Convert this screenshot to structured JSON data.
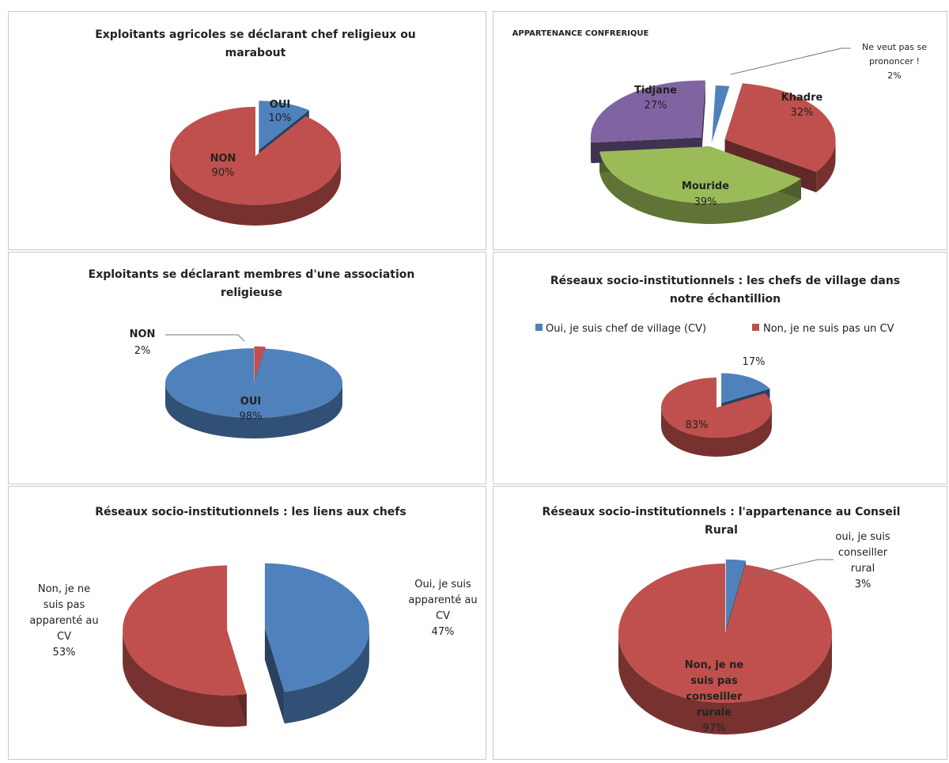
{
  "colors": {
    "blue": "#4f81bd",
    "red": "#c0504d",
    "green": "#9bbb59",
    "purple": "#8064a2"
  },
  "chart_data": [
    {
      "type": "pie",
      "title": "Exploitants agricoles se déclarant chef religieux ou marabout",
      "title_lines": [
        "Exploitants agricoles se déclarant chef religieux ou",
        "marabout"
      ],
      "categories": [
        "OUI",
        "NON"
      ],
      "values": [
        10,
        90
      ],
      "labels": [
        "10%",
        "90%"
      ],
      "colors": [
        "#4f81bd",
        "#c0504d"
      ]
    },
    {
      "type": "pie",
      "title": "APPARTENANCE CONFRERIQUE",
      "title_lines": [
        "APPARTENANCE CONFRERIQUE"
      ],
      "categories": [
        "Ne veut pas se prononcer !",
        "Khadre",
        "Mouride",
        "Tidjane"
      ],
      "values": [
        2,
        32,
        39,
        27
      ],
      "labels": [
        "2%",
        "32%",
        "39%",
        "27%"
      ],
      "colors": [
        "#4f81bd",
        "#c0504d",
        "#9bbb59",
        "#8064a2"
      ]
    },
    {
      "type": "pie",
      "title": "Exploitants se déclarant membres d'une association religieuse",
      "title_lines": [
        "Exploitants se déclarant membres d'une association",
        "religieuse"
      ],
      "categories": [
        "NON",
        "OUI"
      ],
      "values": [
        2,
        98
      ],
      "labels": [
        "2%",
        "98%"
      ],
      "colors": [
        "#c0504d",
        "#4f81bd"
      ]
    },
    {
      "type": "pie",
      "title": "Réseaux socio-institutionnels : les chefs de village dans notre échantillion",
      "title_lines": [
        "Réseaux socio-institutionnels : les chefs de village dans",
        "notre échantillion"
      ],
      "categories": [
        "Oui, je suis chef de village (CV)",
        "Non, je ne suis pas un CV"
      ],
      "values": [
        17,
        83
      ],
      "labels": [
        "17%",
        "83%"
      ],
      "colors": [
        "#4f81bd",
        "#c0504d"
      ],
      "legend": "top"
    },
    {
      "type": "pie",
      "title": "Réseaux socio-institutionnels : les liens aux chefs",
      "title_lines": [
        "Réseaux socio-institutionnels : les liens aux chefs"
      ],
      "categories": [
        "Oui, je suis apparenté au CV",
        "Non, je ne suis pas apparenté au CV"
      ],
      "values": [
        47,
        53
      ],
      "labels": [
        "47%",
        "53%"
      ],
      "colors": [
        "#4f81bd",
        "#c0504d"
      ]
    },
    {
      "type": "pie",
      "title": "Réseaux socio-institutionnels : l'appartenance au Conseil Rural",
      "title_lines": [
        "Réseaux socio-institutionnels : l'appartenance au Conseil",
        "Rural"
      ],
      "categories": [
        "oui, je suis conseiller rural",
        "Non, je ne suis pas conseiller rurale"
      ],
      "values": [
        3,
        97
      ],
      "labels": [
        "3%",
        "97%"
      ],
      "colors": [
        "#4f81bd",
        "#c0504d"
      ]
    }
  ]
}
